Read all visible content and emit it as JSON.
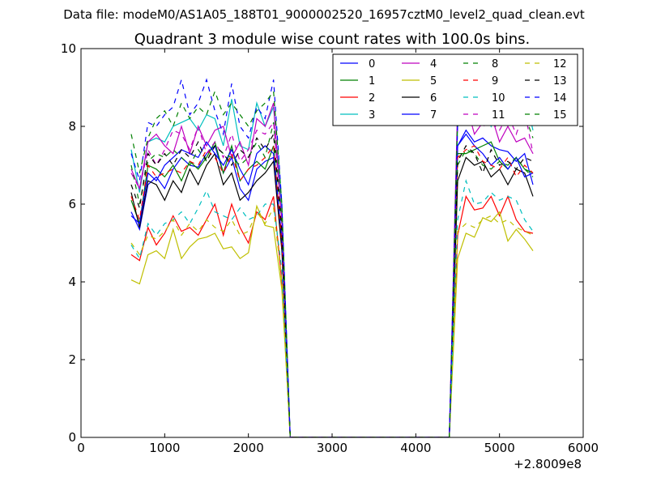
{
  "chart_data": {
    "type": "line",
    "suptitle": "Data file: modeM0/AS1A05_188T01_9000002520_16957cztM0_level2_quad_clean.evt",
    "title": "Quadrant 3 module wise count rates with 100.0s bins.",
    "xlabel": "",
    "ylabel": "",
    "xlim": [
      0,
      6000
    ],
    "ylim": [
      0,
      10
    ],
    "x_offset_label": "+2.8009e8",
    "xticks": [
      0,
      1000,
      2000,
      3000,
      4000,
      5000,
      6000
    ],
    "xtick_labels": [
      "0",
      "1000",
      "2000",
      "3000",
      "4000",
      "5000",
      "6000"
    ],
    "yticks": [
      0,
      2,
      4,
      6,
      8,
      10
    ],
    "ytick_labels": [
      "0",
      "2",
      "4",
      "6",
      "8",
      "10"
    ],
    "grid": false,
    "legend_location": "top-right",
    "legend_columns": 4,
    "x": [
      600,
      700,
      800,
      900,
      1000,
      1100,
      1200,
      1300,
      1400,
      1500,
      1600,
      1700,
      1800,
      1900,
      2000,
      2100,
      2200,
      2300,
      2400,
      2500,
      2600,
      2700,
      2800,
      2900,
      3000,
      3100,
      3200,
      3300,
      3400,
      3500,
      3600,
      3700,
      3800,
      3900,
      4000,
      4100,
      4200,
      4300,
      4400,
      4500,
      4600,
      4700,
      4800,
      4900,
      5000,
      5100,
      5200,
      5300,
      5400
    ],
    "series": [
      {
        "name": "0",
        "color": "#0000ff",
        "dash": "solid",
        "values": [
          5.8,
          5.35,
          6.5,
          6.7,
          6.4,
          6.9,
          7.2,
          7.0,
          6.95,
          7.3,
          7.5,
          6.8,
          7.2,
          6.4,
          6.1,
          6.9,
          7.1,
          7.2,
          4.9,
          0,
          0,
          0,
          0,
          0,
          0,
          0,
          0,
          0,
          0,
          0,
          0,
          0,
          0,
          0,
          0,
          0,
          0,
          0,
          0,
          7.5,
          7.9,
          7.6,
          7.7,
          7.5,
          7.4,
          7.35,
          7.1,
          7.3,
          6.5
        ]
      },
      {
        "name": "1",
        "color": "#008000",
        "dash": "solid",
        "values": [
          6.1,
          5.5,
          7.0,
          6.9,
          6.7,
          7.0,
          6.6,
          7.1,
          6.9,
          7.2,
          7.6,
          6.8,
          7.5,
          6.6,
          6.9,
          7.1,
          6.9,
          7.5,
          5.0,
          0,
          0,
          0,
          0,
          0,
          0,
          0,
          0,
          0,
          0,
          0,
          0,
          0,
          0,
          0,
          0,
          0,
          0,
          0,
          0,
          7.3,
          7.3,
          7.4,
          7.5,
          7.6,
          7.1,
          6.9,
          7.2,
          6.9,
          6.8
        ]
      },
      {
        "name": "2",
        "color": "#ff0000",
        "dash": "solid",
        "values": [
          4.7,
          4.55,
          5.4,
          4.95,
          5.25,
          5.7,
          5.3,
          5.4,
          5.2,
          5.6,
          6.0,
          5.2,
          6.0,
          5.4,
          5.0,
          5.8,
          5.6,
          6.2,
          4.0,
          0,
          0,
          0,
          0,
          0,
          0,
          0,
          0,
          0,
          0,
          0,
          0,
          0,
          0,
          0,
          0,
          0,
          0,
          0,
          0,
          5.2,
          6.2,
          5.85,
          5.9,
          6.2,
          5.7,
          6.2,
          5.6,
          5.3,
          5.25
        ]
      },
      {
        "name": "3",
        "color": "#00bfbf",
        "dash": "solid",
        "values": [
          7.4,
          6.3,
          7.6,
          7.7,
          7.6,
          8.0,
          8.1,
          8.2,
          7.9,
          8.3,
          8.2,
          7.5,
          8.7,
          7.5,
          7.4,
          8.6,
          8.0,
          8.5,
          5.8,
          0,
          0,
          0,
          0,
          0,
          0,
          0,
          0,
          0,
          0,
          0,
          0,
          0,
          0,
          0,
          0,
          0,
          0,
          0,
          0,
          8.0,
          8.4,
          8.2,
          8.8,
          8.0,
          8.5,
          8.3,
          8.8,
          8.8,
          7.9
        ]
      },
      {
        "name": "4",
        "color": "#bf00bf",
        "dash": "solid",
        "values": [
          6.9,
          6.4,
          7.6,
          7.8,
          7.5,
          7.3,
          8.0,
          7.3,
          8.0,
          7.5,
          7.9,
          8.0,
          7.2,
          7.6,
          7.0,
          8.2,
          8.0,
          8.6,
          5.5,
          0,
          0,
          0,
          0,
          0,
          0,
          0,
          0,
          0,
          0,
          0,
          0,
          0,
          0,
          0,
          0,
          0,
          0,
          0,
          0,
          8.6,
          8.6,
          7.8,
          8.1,
          8.3,
          7.6,
          8.0,
          7.6,
          7.7,
          7.3
        ]
      },
      {
        "name": "5",
        "color": "#bfbf00",
        "dash": "solid",
        "values": [
          4.05,
          3.95,
          4.7,
          4.8,
          4.6,
          5.35,
          4.6,
          4.9,
          5.1,
          5.15,
          5.25,
          4.85,
          4.9,
          4.6,
          4.75,
          5.95,
          5.45,
          5.4,
          3.8,
          0,
          0,
          0,
          0,
          0,
          0,
          0,
          0,
          0,
          0,
          0,
          0,
          0,
          0,
          0,
          0,
          0,
          0,
          0,
          0,
          4.6,
          5.25,
          5.15,
          5.65,
          5.55,
          5.8,
          5.05,
          5.35,
          5.1,
          4.8
        ]
      },
      {
        "name": "6",
        "color": "#000000",
        "dash": "solid",
        "values": [
          6.3,
          5.4,
          6.6,
          6.5,
          6.1,
          6.6,
          6.3,
          6.9,
          6.5,
          7.0,
          7.3,
          6.5,
          6.8,
          6.1,
          6.3,
          6.6,
          6.8,
          7.1,
          4.8,
          0,
          0,
          0,
          0,
          0,
          0,
          0,
          0,
          0,
          0,
          0,
          0,
          0,
          0,
          0,
          0,
          0,
          0,
          0,
          0,
          6.6,
          7.2,
          7.0,
          7.1,
          6.7,
          6.9,
          6.5,
          6.9,
          6.8,
          6.2
        ]
      },
      {
        "name": "7",
        "color": "#0000ff",
        "dash": "solid",
        "values": [
          5.7,
          5.5,
          6.8,
          6.6,
          7.0,
          7.2,
          7.4,
          7.3,
          7.2,
          7.6,
          7.3,
          7.0,
          7.4,
          6.9,
          6.5,
          7.3,
          7.5,
          7.3,
          5.1,
          0,
          0,
          0,
          0,
          0,
          0,
          0,
          0,
          0,
          0,
          0,
          0,
          0,
          0,
          0,
          0,
          0,
          0,
          0,
          0,
          7.5,
          7.8,
          7.5,
          7.3,
          7.0,
          7.2,
          6.9,
          7.2,
          6.7,
          6.8
        ]
      },
      {
        "name": "8",
        "color": "#008000",
        "dash": "dashed",
        "values": [
          7.0,
          6.0,
          7.1,
          7.3,
          7.2,
          7.4,
          7.2,
          7.0,
          7.4,
          7.1,
          7.5,
          7.3,
          7.2,
          7.0,
          7.2,
          7.6,
          7.2,
          8.1,
          5.5,
          0,
          0,
          0,
          0,
          0,
          0,
          0,
          0,
          0,
          0,
          0,
          0,
          0,
          0,
          0,
          0,
          0,
          0,
          0,
          0,
          7.0,
          7.4,
          7.3,
          7.0,
          6.9,
          7.1,
          7.0,
          7.2,
          6.9,
          6.7
        ]
      },
      {
        "name": "9",
        "color": "#ff0000",
        "dash": "dashed",
        "values": [
          6.2,
          5.6,
          7.0,
          6.7,
          6.8,
          6.9,
          6.8,
          7.1,
          7.0,
          7.4,
          7.2,
          6.8,
          7.3,
          6.6,
          6.9,
          7.0,
          7.2,
          7.5,
          5.0,
          0,
          0,
          0,
          0,
          0,
          0,
          0,
          0,
          0,
          0,
          0,
          0,
          0,
          0,
          0,
          0,
          0,
          0,
          0,
          0,
          7.2,
          7.4,
          7.5,
          7.1,
          7.0,
          6.9,
          7.2,
          6.7,
          7.0,
          6.8
        ]
      },
      {
        "name": "10",
        "color": "#00bfbf",
        "dash": "dashed",
        "values": [
          4.95,
          4.6,
          5.5,
          5.2,
          5.5,
          5.6,
          5.8,
          5.5,
          5.9,
          6.35,
          5.8,
          5.7,
          5.6,
          5.9,
          5.6,
          5.7,
          6.0,
          6.0,
          4.3,
          0,
          0,
          0,
          0,
          0,
          0,
          0,
          0,
          0,
          0,
          0,
          0,
          0,
          0,
          0,
          0,
          0,
          0,
          0,
          0,
          5.6,
          6.6,
          6.0,
          6.05,
          6.3,
          6.1,
          6.2,
          6.1,
          5.6,
          5.3
        ]
      },
      {
        "name": "11",
        "color": "#bf00bf",
        "dash": "dashed",
        "values": [
          6.8,
          6.4,
          7.4,
          7.0,
          7.4,
          7.9,
          7.8,
          7.4,
          8.0,
          7.3,
          7.6,
          7.2,
          7.8,
          7.1,
          7.4,
          7.9,
          7.8,
          8.1,
          5.6,
          0,
          0,
          0,
          0,
          0,
          0,
          0,
          0,
          0,
          0,
          0,
          0,
          0,
          0,
          0,
          0,
          0,
          0,
          0,
          0,
          8.1,
          8.7,
          8.4,
          8.0,
          8.1,
          7.9,
          8.3,
          7.8,
          8.4,
          7.3
        ]
      },
      {
        "name": "12",
        "color": "#bfbf00",
        "dash": "dashed",
        "values": [
          5.0,
          4.7,
          5.2,
          5.1,
          5.3,
          5.6,
          5.2,
          5.5,
          5.3,
          5.6,
          5.4,
          5.3,
          5.6,
          5.2,
          5.3,
          5.8,
          5.5,
          5.9,
          4.0,
          0,
          0,
          0,
          0,
          0,
          0,
          0,
          0,
          0,
          0,
          0,
          0,
          0,
          0,
          0,
          0,
          0,
          0,
          0,
          0,
          5.3,
          5.5,
          5.4,
          5.6,
          5.7,
          5.5,
          5.6,
          5.4,
          5.3,
          5.2
        ]
      },
      {
        "name": "13",
        "color": "#000000",
        "dash": "dashed",
        "values": [
          6.5,
          5.9,
          7.3,
          7.0,
          7.3,
          7.0,
          7.4,
          7.2,
          7.6,
          7.1,
          7.5,
          7.3,
          7.0,
          7.4,
          7.2,
          7.7,
          7.4,
          7.8,
          5.3,
          0,
          0,
          0,
          0,
          0,
          0,
          0,
          0,
          0,
          0,
          0,
          0,
          0,
          0,
          0,
          0,
          0,
          0,
          0,
          0,
          7.1,
          7.5,
          7.3,
          6.8,
          7.4,
          7.0,
          7.1,
          6.9,
          7.2,
          7.1
        ]
      },
      {
        "name": "14",
        "color": "#0000ff",
        "dash": "dashed",
        "values": [
          7.3,
          6.6,
          8.1,
          8.0,
          8.3,
          8.5,
          9.2,
          8.3,
          8.6,
          9.2,
          8.4,
          7.8,
          9.1,
          8.0,
          7.7,
          8.5,
          8.2,
          9.2,
          6.0,
          0,
          0,
          0,
          0,
          0,
          0,
          0,
          0,
          0,
          0,
          0,
          0,
          0,
          0,
          0,
          0,
          0,
          0,
          0,
          0,
          8.1,
          9.0,
          8.4,
          9.2,
          8.6,
          8.8,
          8.9,
          9.2,
          8.2,
          8.0
        ]
      },
      {
        "name": "15",
        "color": "#008000",
        "dash": "dashed",
        "values": [
          7.8,
          6.8,
          7.7,
          8.2,
          8.4,
          8.0,
          8.6,
          8.2,
          8.5,
          8.3,
          8.9,
          8.3,
          8.6,
          8.3,
          8.0,
          8.4,
          8.6,
          8.9,
          6.0,
          0,
          0,
          0,
          0,
          0,
          0,
          0,
          0,
          0,
          0,
          0,
          0,
          0,
          0,
          0,
          0,
          0,
          0,
          0,
          0,
          8.3,
          8.9,
          8.6,
          8.7,
          8.3,
          8.5,
          8.1,
          8.6,
          8.3,
          7.7
        ]
      }
    ]
  }
}
